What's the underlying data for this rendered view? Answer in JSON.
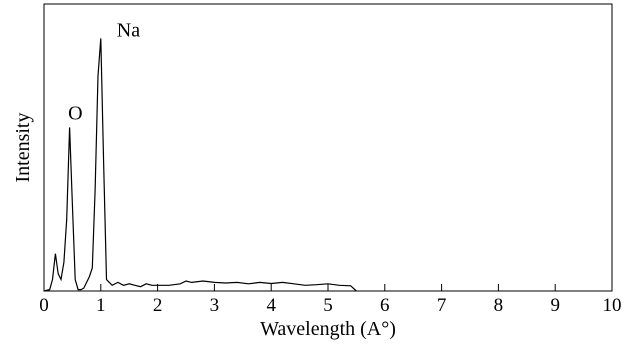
{
  "chart_data": {
    "type": "line",
    "title": "",
    "xlabel": "Wavelength (A°)",
    "ylabel": "Intensity",
    "xlim": [
      0,
      10
    ],
    "ylim": [
      0,
      1
    ],
    "x_ticks": [
      0,
      1,
      2,
      3,
      4,
      5,
      6,
      7,
      8,
      9,
      10
    ],
    "x_tick_labels": [
      "0",
      "1",
      "2",
      "3",
      "4",
      "5",
      "6",
      "7",
      "8",
      "9",
      "10"
    ],
    "grid": false,
    "legend": "none",
    "line_color": "#000000",
    "series": [
      {
        "x": [
          0.0,
          0.1,
          0.15,
          0.2,
          0.25,
          0.3,
          0.35,
          0.4,
          0.45,
          0.5,
          0.55,
          0.6,
          0.65,
          0.7,
          0.75,
          0.8,
          0.85,
          0.9,
          0.95,
          1.0,
          1.05,
          1.1,
          1.15,
          1.2,
          1.3,
          1.4,
          1.5,
          1.6,
          1.7,
          1.8,
          1.9,
          2.0,
          2.2,
          2.4,
          2.5,
          2.6,
          2.8,
          3.0,
          3.2,
          3.4,
          3.6,
          3.8,
          4.0,
          4.2,
          4.4,
          4.6,
          4.8,
          5.0,
          5.2,
          5.4,
          5.5
        ],
        "y": [
          0.0,
          0.005,
          0.04,
          0.13,
          0.06,
          0.04,
          0.1,
          0.25,
          0.57,
          0.3,
          0.04,
          0.005,
          0.005,
          0.01,
          0.03,
          0.05,
          0.08,
          0.35,
          0.75,
          0.88,
          0.45,
          0.04,
          0.03,
          0.02,
          0.03,
          0.02,
          0.025,
          0.02,
          0.015,
          0.025,
          0.02,
          0.02,
          0.02,
          0.025,
          0.035,
          0.03,
          0.035,
          0.03,
          0.028,
          0.03,
          0.025,
          0.03,
          0.026,
          0.03,
          0.025,
          0.02,
          0.022,
          0.025,
          0.02,
          0.018,
          0.0
        ]
      }
    ],
    "annotations": [
      {
        "text": "O",
        "x": 0.5,
        "y": 0.57
      },
      {
        "text": "Na",
        "x": 1.0,
        "y": 0.88
      }
    ]
  }
}
